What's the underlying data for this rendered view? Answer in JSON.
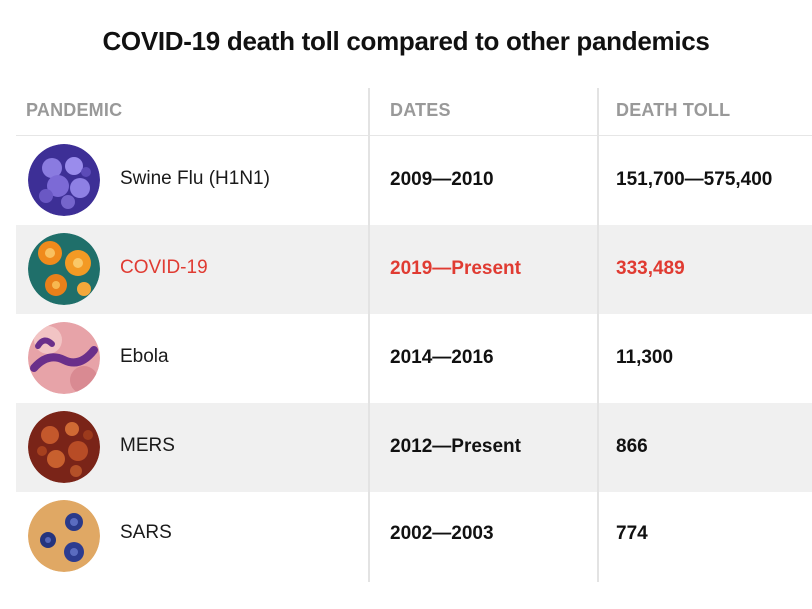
{
  "chart_data": {
    "type": "table",
    "title": "COVID-19 death toll compared to other pandemics",
    "columns": [
      "PANDEMIC",
      "DATES",
      "DEATH TOLL"
    ],
    "rows": [
      {
        "pandemic": "Swine Flu (H1N1)",
        "dates": "2009—2010",
        "death_toll": "151,700—575,400",
        "icon": "swine-flu-virus-icon",
        "highlight": false
      },
      {
        "pandemic": "COVID-19",
        "dates": "2019—Present",
        "death_toll": "333,489",
        "icon": "covid-19-virus-icon",
        "highlight": true
      },
      {
        "pandemic": "Ebola",
        "dates": "2014—2016",
        "death_toll": "11,300",
        "icon": "ebola-virus-icon",
        "highlight": false
      },
      {
        "pandemic": "MERS",
        "dates": "2012—Present",
        "death_toll": "866",
        "icon": "mers-virus-icon",
        "highlight": false
      },
      {
        "pandemic": "SARS",
        "dates": "2002—2003",
        "death_toll": "774",
        "icon": "sars-virus-icon",
        "highlight": false
      }
    ],
    "highlight_color": "#e03b32",
    "header_color": "#999999",
    "row_shading_color": "#f0f0f0"
  }
}
